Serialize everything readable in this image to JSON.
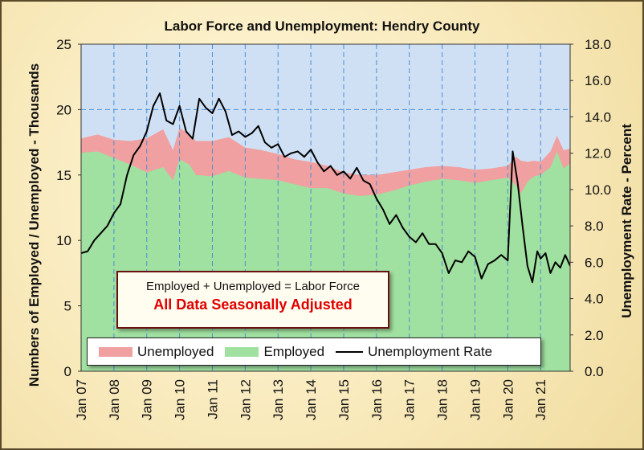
{
  "chart_data": {
    "type": "area",
    "title": "Labor Force and Unemployment: Hendry County",
    "ylabel_left": "Numbers of Employed / Unemployed - Thousands",
    "ylabel_right": "Unemployment Rate - Percent",
    "ylim_left": [
      0,
      25
    ],
    "ylim_right": [
      0,
      18
    ],
    "yticks_left": [
      "0",
      "5",
      "10",
      "15",
      "20",
      "25"
    ],
    "yticks_right": [
      "0.0",
      "2.0",
      "4.0",
      "6.0",
      "8.0",
      "10.0",
      "12.0",
      "14.0",
      "16.0",
      "18.0"
    ],
    "x_ticks": [
      "Jan 07",
      "Jan 08",
      "Jan 09",
      "Jan 10",
      "Jan 11",
      "Jan 12",
      "Jan 13",
      "Jan 14",
      "Jan 15",
      "Jan 16",
      "Jan 17",
      "Jan 18",
      "Jan 19",
      "Jan 20",
      "Jan 21"
    ],
    "x_start_year": 2007,
    "x_end_year": 2021.9,
    "grid": true,
    "colors": {
      "employed": "#a0e0a0",
      "unemployed": "#f0a0a0",
      "rate_line": "#000000",
      "plot_background": "#cfe0f4",
      "grid_line": "#4a8ed8"
    },
    "series": [
      {
        "name": "Employed",
        "axis": "left",
        "x": [
          2007.0,
          2007.5,
          2008.0,
          2008.5,
          2009.0,
          2009.5,
          2009.8,
          2010.0,
          2010.3,
          2010.5,
          2011.0,
          2011.5,
          2012.0,
          2012.5,
          2013.0,
          2013.5,
          2014.0,
          2014.5,
          2015.0,
          2015.5,
          2016.0,
          2016.5,
          2017.0,
          2017.5,
          2018.0,
          2018.5,
          2019.0,
          2019.5,
          2020.0,
          2020.25,
          2020.4,
          2020.6,
          2020.8,
          2021.0,
          2021.3,
          2021.5,
          2021.7,
          2021.9
        ],
        "values": [
          16.7,
          16.8,
          16.3,
          15.8,
          15.2,
          15.6,
          14.6,
          16.2,
          15.8,
          15.0,
          14.9,
          15.3,
          14.8,
          14.7,
          14.6,
          14.3,
          14.0,
          14.0,
          13.6,
          13.4,
          13.5,
          13.8,
          14.2,
          14.5,
          14.7,
          14.6,
          14.4,
          14.6,
          14.8,
          14.2,
          13.6,
          14.5,
          14.9,
          15.0,
          15.6,
          16.8,
          15.5,
          15.9
        ]
      },
      {
        "name": "Unemployed",
        "axis": "left",
        "x": [
          2007.0,
          2007.5,
          2008.0,
          2008.5,
          2009.0,
          2009.5,
          2009.8,
          2010.0,
          2010.3,
          2010.5,
          2011.0,
          2011.5,
          2012.0,
          2012.5,
          2013.0,
          2013.5,
          2014.0,
          2014.5,
          2015.0,
          2015.5,
          2016.0,
          2016.5,
          2017.0,
          2017.5,
          2018.0,
          2018.5,
          2019.0,
          2019.5,
          2020.0,
          2020.25,
          2020.4,
          2020.6,
          2020.8,
          2021.0,
          2021.3,
          2021.5,
          2021.7,
          2021.9
        ],
        "values": [
          1.1,
          1.3,
          1.4,
          1.8,
          2.6,
          2.9,
          2.3,
          2.4,
          2.3,
          2.6,
          2.7,
          2.6,
          2.3,
          2.2,
          2.0,
          1.9,
          2.0,
          1.7,
          1.6,
          1.6,
          1.5,
          1.4,
          1.2,
          1.1,
          1.0,
          1.0,
          1.0,
          0.9,
          0.9,
          2.2,
          2.5,
          1.5,
          1.2,
          1.0,
          1.2,
          1.2,
          1.4,
          1.1
        ]
      },
      {
        "name": "Unemployment Rate",
        "axis": "right",
        "x": [
          2007.0,
          2007.2,
          2007.4,
          2007.6,
          2007.8,
          2008.0,
          2008.2,
          2008.4,
          2008.6,
          2008.8,
          2009.0,
          2009.2,
          2009.4,
          2009.6,
          2009.8,
          2010.0,
          2010.2,
          2010.4,
          2010.6,
          2010.8,
          2011.0,
          2011.2,
          2011.4,
          2011.6,
          2011.8,
          2012.0,
          2012.2,
          2012.4,
          2012.6,
          2012.8,
          2013.0,
          2013.2,
          2013.4,
          2013.6,
          2013.8,
          2014.0,
          2014.2,
          2014.4,
          2014.6,
          2014.8,
          2015.0,
          2015.2,
          2015.4,
          2015.6,
          2015.8,
          2016.0,
          2016.2,
          2016.4,
          2016.6,
          2016.8,
          2017.0,
          2017.2,
          2017.4,
          2017.6,
          2017.8,
          2018.0,
          2018.2,
          2018.4,
          2018.6,
          2018.8,
          2019.0,
          2019.2,
          2019.4,
          2019.6,
          2019.8,
          2020.0,
          2020.15,
          2020.3,
          2020.45,
          2020.6,
          2020.75,
          2020.9,
          2021.0,
          2021.15,
          2021.3,
          2021.45,
          2021.6,
          2021.75,
          2021.9
        ],
        "values": [
          6.5,
          6.6,
          7.2,
          7.6,
          8.0,
          8.7,
          9.2,
          10.8,
          11.9,
          12.4,
          13.2,
          14.6,
          15.3,
          13.8,
          13.6,
          14.6,
          13.2,
          12.8,
          15.0,
          14.5,
          14.2,
          15.0,
          14.3,
          13.0,
          13.2,
          12.9,
          13.1,
          13.5,
          12.6,
          12.3,
          12.5,
          11.8,
          12.0,
          12.1,
          11.8,
          12.2,
          11.5,
          11.0,
          11.3,
          10.8,
          11.0,
          10.6,
          11.2,
          10.5,
          10.3,
          9.5,
          8.9,
          8.1,
          8.6,
          7.9,
          7.4,
          7.1,
          7.6,
          7.0,
          7.0,
          6.5,
          5.4,
          6.1,
          6.0,
          6.6,
          6.3,
          5.1,
          5.9,
          6.1,
          6.4,
          6.1,
          12.1,
          10.4,
          8.0,
          5.8,
          4.9,
          6.6,
          6.2,
          6.5,
          5.4,
          6.0,
          5.7,
          6.4,
          5.8
        ]
      }
    ]
  },
  "legend": {
    "unemployed_label": "Unemployed",
    "employed_label": "Employed",
    "rate_label": "Unemployment Rate"
  },
  "note": {
    "line1": "Employed + Unemployed = Labor Force",
    "line2": "All Data Seasonally Adjusted"
  }
}
